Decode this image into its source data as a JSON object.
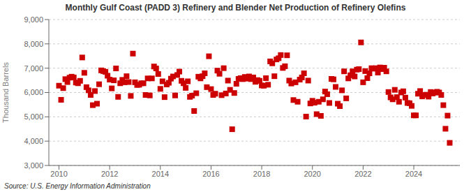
{
  "chart_data": {
    "type": "scatter",
    "title": "Monthly Gulf Coast (PADD 3) Refinery and Blender Net Production of Refinery Olefins",
    "ylabel": "Thousand Barrels",
    "source": "Source: U.S. Energy Information Administration",
    "color": "#cc0000",
    "marker": "square",
    "grid": "y",
    "xlim": [
      2009.6,
      2025.8166666666666
    ],
    "xticks": [
      2010,
      2012,
      2014,
      2016,
      2018,
      2020,
      2022,
      2024
    ],
    "ylim": [
      3000,
      9000
    ],
    "yticks": [
      {
        "value": 3000,
        "label": "3,000"
      },
      {
        "value": 4000,
        "label": "4,000"
      },
      {
        "value": 5000,
        "label": "5,000"
      },
      {
        "value": 6000,
        "label": "6,000"
      },
      {
        "value": 7000,
        "label": "7,000"
      },
      {
        "value": 8000,
        "label": "8,000"
      },
      {
        "value": 9000,
        "label": "9,000"
      }
    ],
    "x": [
      2010,
      2010.0833333333333,
      2010.1666666666667,
      2010.25,
      2010.3333333333333,
      2010.4166666666667,
      2010.5,
      2010.5833333333333,
      2010.6666666666667,
      2010.75,
      2010.8333333333333,
      2010.9166666666667,
      2011,
      2011.0833333333333,
      2011.1666666666667,
      2011.25,
      2011.3333333333333,
      2011.4166666666667,
      2011.5,
      2011.5833333333333,
      2011.6666666666667,
      2011.75,
      2011.8333333333333,
      2011.9166666666667,
      2012,
      2012.0833333333333,
      2012.1666666666667,
      2012.25,
      2012.3333333333333,
      2012.4166666666667,
      2012.5,
      2012.5833333333333,
      2012.6666666666667,
      2012.75,
      2012.8333333333333,
      2012.9166666666667,
      2013,
      2013.0833333333333,
      2013.1666666666667,
      2013.25,
      2013.3333333333333,
      2013.4166666666667,
      2013.5,
      2013.5833333333333,
      2013.6666666666667,
      2013.75,
      2013.8333333333333,
      2013.9166666666667,
      2014,
      2014.0833333333333,
      2014.1666666666667,
      2014.25,
      2014.3333333333333,
      2014.4166666666667,
      2014.5,
      2014.5833333333333,
      2014.6666666666667,
      2014.75,
      2014.8333333333333,
      2014.9166666666667,
      2015,
      2015.0833333333333,
      2015.1666666666667,
      2015.25,
      2015.3333333333333,
      2015.4166666666667,
      2015.5,
      2015.5833333333333,
      2015.6666666666667,
      2015.75,
      2015.8333333333333,
      2015.9166666666667,
      2016,
      2016.0833333333333,
      2016.1666666666667,
      2016.25,
      2016.3333333333333,
      2016.4166666666667,
      2016.5,
      2016.5833333333333,
      2016.6666666666667,
      2016.75,
      2016.8333333333333,
      2016.9166666666667,
      2017,
      2017.0833333333333,
      2017.1666666666667,
      2017.25,
      2017.3333333333333,
      2017.4166666666667,
      2017.5,
      2017.5833333333333,
      2017.6666666666667,
      2017.75,
      2017.8333333333333,
      2017.9166666666667,
      2018,
      2018.0833333333333,
      2018.1666666666667,
      2018.25,
      2018.3333333333333,
      2018.4166666666667,
      2018.5,
      2018.5833333333333,
      2018.6666666666667,
      2018.75,
      2018.8333333333333,
      2018.9166666666667,
      2019,
      2019.0833333333333,
      2019.1666666666667,
      2019.25,
      2019.3333333333333,
      2019.4166666666667,
      2019.5,
      2019.5833333333333,
      2019.6666666666667,
      2019.75,
      2019.8333333333333,
      2019.9166666666667,
      2020,
      2020.0833333333333,
      2020.1666666666667,
      2020.25,
      2020.3333333333333,
      2020.4166666666667,
      2020.5,
      2020.5833333333333,
      2020.6666666666667,
      2020.75,
      2020.8333333333333,
      2020.9166666666667,
      2021,
      2021.0833333333333,
      2021.1666666666667,
      2021.25,
      2021.3333333333333,
      2021.4166666666667,
      2021.5,
      2021.5833333333333,
      2021.6666666666667,
      2021.75,
      2021.8333333333333,
      2021.9166666666667,
      2022,
      2022.0833333333333,
      2022.1666666666667,
      2022.25,
      2022.3333333333333,
      2022.4166666666667,
      2022.5,
      2022.5833333333333,
      2022.6666666666667,
      2022.75,
      2022.8333333333333,
      2022.9166666666667,
      2023,
      2023.0833333333333,
      2023.1666666666667,
      2023.25,
      2023.3333333333333,
      2023.4166666666667,
      2023.5,
      2023.5833333333333,
      2023.6666666666667,
      2023.75,
      2023.8333333333333,
      2023.9166666666667,
      2024,
      2024.0833333333333,
      2024.1666666666667,
      2024.25,
      2024.3333333333333,
      2024.4166666666667,
      2024.5,
      2024.5833333333333,
      2024.6666666666667,
      2024.75,
      2024.8333333333333,
      2024.9166666666667,
      2025,
      2025.0833333333333,
      2025.1666666666667,
      2025.25,
      2025.3333333333333,
      2025.4166666666667
    ],
    "values": [
      6280,
      5700,
      6180,
      6550,
      6430,
      6610,
      6650,
      6620,
      6410,
      6380,
      6480,
      7440,
      6810,
      6220,
      6090,
      5900,
      5480,
      6060,
      5540,
      6340,
      6910,
      6880,
      6850,
      6690,
      6530,
      6170,
      6500,
      6990,
      5820,
      6380,
      6520,
      6420,
      6670,
      6430,
      5860,
      7600,
      6420,
      6310,
      6320,
      6380,
      6380,
      5900,
      6580,
      5880,
      6580,
      7070,
      6990,
      6760,
      6150,
      6460,
      5810,
      6330,
      6400,
      6570,
      6660,
      5880,
      6720,
      6860,
      6480,
      6380,
      6190,
      6460,
      5820,
      5870,
      5240,
      5970,
      6650,
      6580,
      6670,
      6790,
      6220,
      7490,
      6140,
      5900,
      5950,
      6900,
      6770,
      5890,
      7000,
      5960,
      6490,
      6110,
      4490,
      5980,
      6360,
      6560,
      6590,
      6550,
      6640,
      6570,
      6660,
      6550,
      6620,
      6440,
      6510,
      6480,
      6290,
      6280,
      6590,
      6320,
      7280,
      7200,
      6670,
      7360,
      7410,
      7540,
      7010,
      7080,
      7530,
      6490,
      6370,
      5690,
      6420,
      5620,
      6530,
      6620,
      6790,
      5010,
      6490,
      5550,
      5660,
      5580,
      5110,
      5620,
      5040,
      5720,
      6040,
      5930,
      5570,
      6560,
      6540,
      6230,
      5540,
      5440,
      6090,
      6870,
      5760,
      6580,
      6710,
      6870,
      6660,
      6940,
      6960,
      8060,
      6420,
      6880,
      6590,
      6790,
      7000,
      6980,
      7000,
      6820,
      7030,
      6960,
      7020,
      6870,
      6020,
      5800,
      5720,
      6110,
      5810,
      5620,
      6000,
      6050,
      5790,
      5570,
      5560,
      5450,
      5060,
      5060,
      5950,
      6060,
      5840,
      5900,
      5910,
      5830,
      6020,
      5960,
      6000,
      6030,
      6000,
      5900,
      5480,
      4510,
      5050,
      3930
    ]
  }
}
